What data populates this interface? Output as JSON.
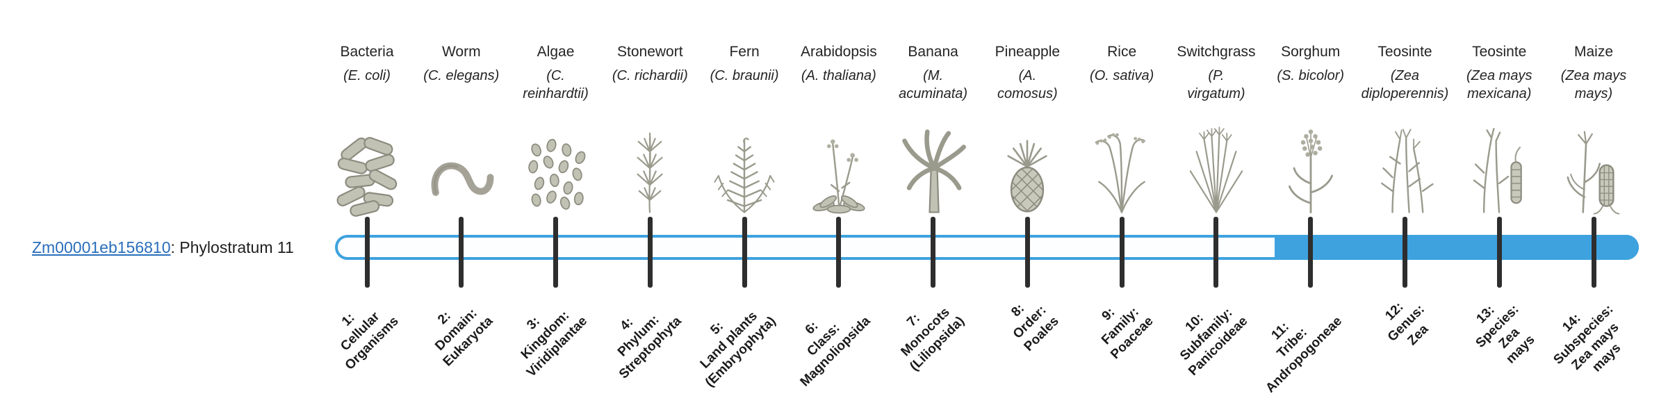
{
  "gene": {
    "id": "Zm00001eb156810",
    "suffix": ": Phylostratum 11",
    "phylostratum": 11
  },
  "colors": {
    "bar_blue": "#3ea2df",
    "track_background": "#fdfeff",
    "tick": "#2e2e2e",
    "link_blue": "#2a6ebb",
    "text": "#262626",
    "illustration_gray": "#9a9a8d"
  },
  "timeline": {
    "filled_from_stratum": 11,
    "strata": [
      {
        "index": 1,
        "organism": "Bacteria",
        "scientific": "(E. coli)",
        "stratum_label": "1:\nCellular\nOrganisms",
        "icon": "bacteria-icon"
      },
      {
        "index": 2,
        "organism": "Worm",
        "scientific": "(C. elegans)",
        "stratum_label": "2:\nDomain:\nEukaryota",
        "icon": "worm-icon"
      },
      {
        "index": 3,
        "organism": "Algae",
        "scientific": "(C.\nreinhardtii)",
        "stratum_label": "3:\nKingdom:\nViridiplantae",
        "icon": "algae-icon"
      },
      {
        "index": 4,
        "organism": "Stonewort",
        "scientific": "(C. richardii)",
        "stratum_label": "4:\nPhylum:\nStreptophyta",
        "icon": "stonewort-icon"
      },
      {
        "index": 5,
        "organism": "Fern",
        "scientific": "(C. braunii)",
        "stratum_label": "5:\nLand plants\n(Embryophyta)",
        "icon": "fern-icon"
      },
      {
        "index": 6,
        "organism": "Arabidopsis",
        "scientific": "(A. thaliana)",
        "stratum_label": "6:\nClass:\nMagnoliopsida",
        "icon": "arabidopsis-icon"
      },
      {
        "index": 7,
        "organism": "Banana",
        "scientific": "(M.\nacuminata)",
        "stratum_label": "7:\nMonocots\n(Liliopsida)",
        "icon": "banana-icon"
      },
      {
        "index": 8,
        "organism": "Pineapple",
        "scientific": "(A.\ncomosus)",
        "stratum_label": "8:\nOrder:\nPoales",
        "icon": "pineapple-icon"
      },
      {
        "index": 9,
        "organism": "Rice",
        "scientific": "(O. sativa)",
        "stratum_label": "9:\nFamily:\nPoaceae",
        "icon": "rice-icon"
      },
      {
        "index": 10,
        "organism": "Switchgrass",
        "scientific": "(P.\nvirgatum)",
        "stratum_label": "10:\nSubfamily:\nPanicoideae",
        "icon": "switchgrass-icon"
      },
      {
        "index": 11,
        "organism": "Sorghum",
        "scientific": "(S. bicolor)",
        "stratum_label": "11:\nTribe:\nAndropogoneae",
        "icon": "sorghum-icon"
      },
      {
        "index": 12,
        "organism": "Teosinte",
        "scientific": "(Zea\ndiploperennis)",
        "stratum_label": "12:\nGenus:\nZea",
        "icon": "teosinte-diploperennis-icon"
      },
      {
        "index": 13,
        "organism": "Teosinte",
        "scientific": "(Zea mays\nmexicana)",
        "stratum_label": "13:\nSpecies:\nZea\nmays",
        "icon": "teosinte-mexicana-icon"
      },
      {
        "index": 14,
        "organism": "Maize",
        "scientific": "(Zea mays\nmays)",
        "stratum_label": "14:\nSubspecies:\nZea mays\nmays",
        "icon": "maize-icon"
      }
    ]
  }
}
